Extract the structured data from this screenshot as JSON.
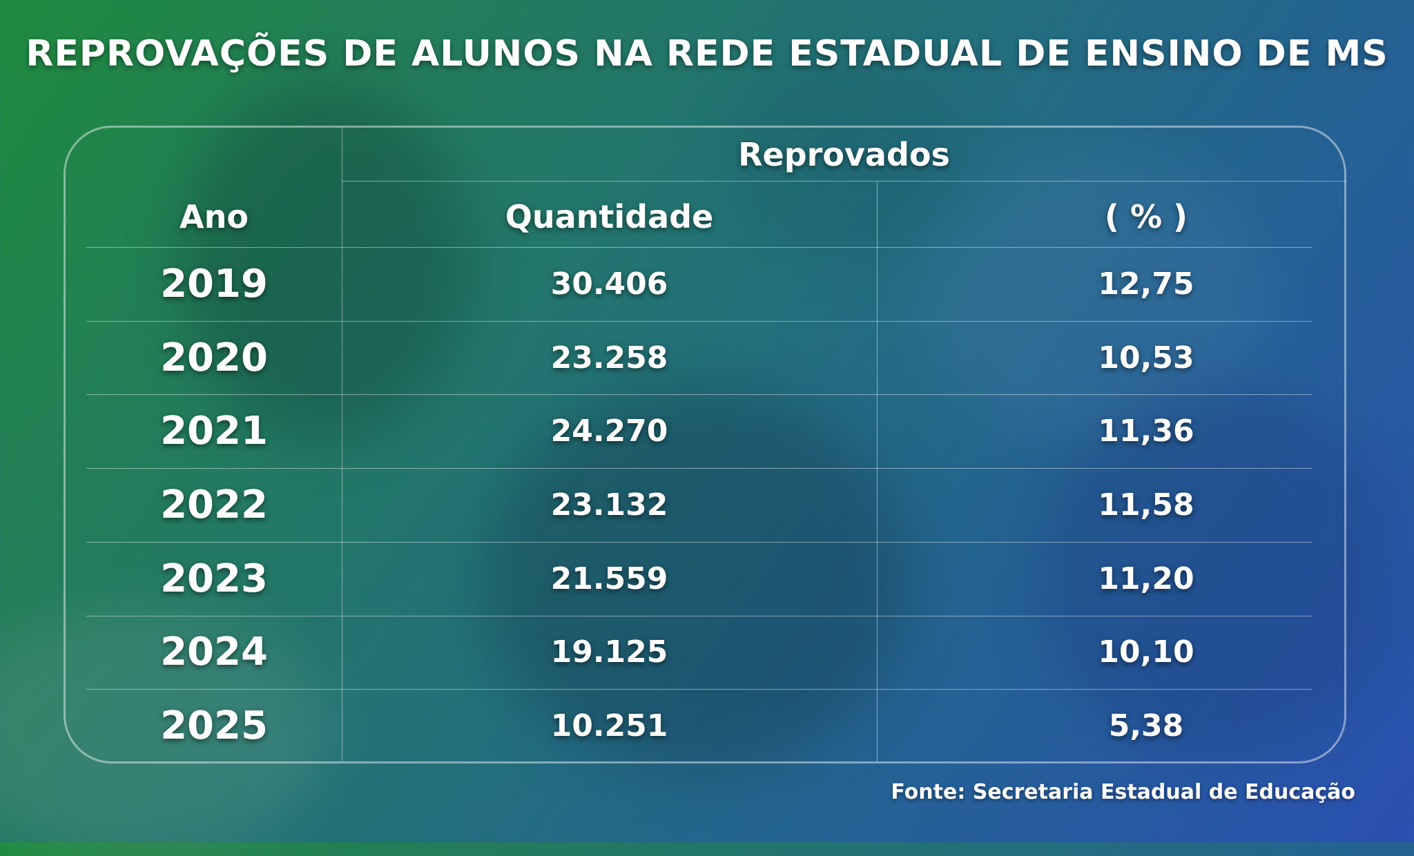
{
  "title": "REPROVAÇÕES DE ALUNOS NA REDE ESTADUAL DE ENSINO DE MS",
  "source": "Fonte: Secretaria Estadual de Educação",
  "chart_data": {
    "type": "table",
    "group_header": "Reprovados",
    "columns": [
      "Ano",
      "Quantidade",
      "( % )"
    ],
    "rows": [
      {
        "ano": "2019",
        "quantidade": "30.406",
        "percentual": "12,75"
      },
      {
        "ano": "2020",
        "quantidade": "23.258",
        "percentual": "10,53"
      },
      {
        "ano": "2021",
        "quantidade": "24.270",
        "percentual": "11,36"
      },
      {
        "ano": "2022",
        "quantidade": "23.132",
        "percentual": "11,58"
      },
      {
        "ano": "2023",
        "quantidade": "21.559",
        "percentual": "11,20"
      },
      {
        "ano": "2024",
        "quantidade": "19.125",
        "percentual": "10,10"
      },
      {
        "ano": "2025",
        "quantidade": "10.251",
        "percentual": "5,38"
      }
    ]
  }
}
